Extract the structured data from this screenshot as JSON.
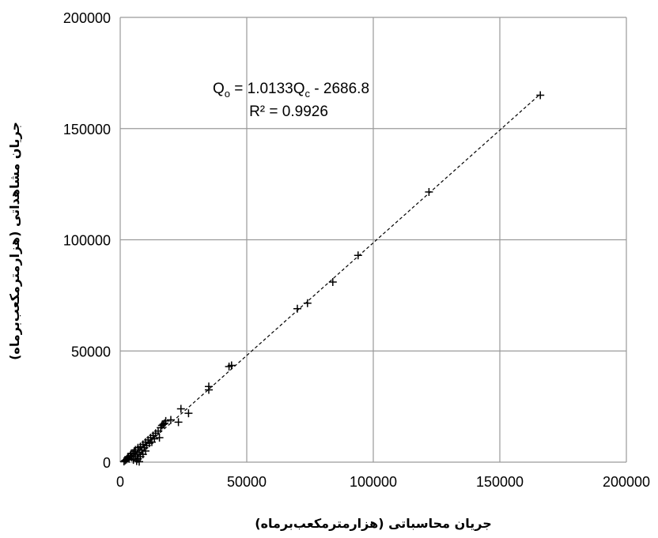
{
  "chart_data": {
    "type": "scatter",
    "xlabel": "جریان محاسباتی (هزارمترمکعب‌برماه)",
    "ylabel": "جریان مشاهداتی (هزارمترمکعب‌برماه)",
    "xlim": [
      0,
      200000
    ],
    "ylim": [
      0,
      200000
    ],
    "xticks": [
      "0",
      "50000",
      "100000",
      "150000",
      "200000"
    ],
    "yticks": [
      "0",
      "50000",
      "100000",
      "150000",
      "200000"
    ],
    "grid": true,
    "marker": "plus",
    "annotation": {
      "equation_prefix": "Q",
      "equation_sub_o": "o",
      "equation_middle": " = 1.0133Q",
      "equation_sub_c": "c",
      "equation_suffix": " - 2686.8",
      "r2": "R² = 0.9926"
    },
    "trendline": {
      "slope": 1.0133,
      "intercept": -2686.8,
      "x_range": [
        2650,
        166000
      ]
    },
    "series": [
      {
        "points": [
          [
            1500,
            300
          ],
          [
            2000,
            800
          ],
          [
            2500,
            1200
          ],
          [
            3000,
            2000
          ],
          [
            3200,
            2500
          ],
          [
            3500,
            1500
          ],
          [
            4000,
            3000
          ],
          [
            4300,
            3800
          ],
          [
            4500,
            2200
          ],
          [
            5000,
            4000
          ],
          [
            5200,
            1000
          ],
          [
            5500,
            4800
          ],
          [
            6000,
            2800
          ],
          [
            6000,
            5500
          ],
          [
            6500,
            500
          ],
          [
            6800,
            3500
          ],
          [
            7000,
            6500
          ],
          [
            7000,
            1500
          ],
          [
            7500,
            200
          ],
          [
            7500,
            4500
          ],
          [
            8000,
            7000
          ],
          [
            8000,
            2500
          ],
          [
            8500,
            5500
          ],
          [
            9000,
            8000
          ],
          [
            9000,
            3500
          ],
          [
            9500,
            6500
          ],
          [
            10000,
            9000
          ],
          [
            10000,
            5000
          ],
          [
            10500,
            7500
          ],
          [
            11000,
            10000
          ],
          [
            11500,
            8500
          ],
          [
            12000,
            11000
          ],
          [
            12500,
            9000
          ],
          [
            13000,
            12000
          ],
          [
            13500,
            10500
          ],
          [
            14000,
            13000
          ],
          [
            15000,
            14000
          ],
          [
            15500,
            11000
          ],
          [
            16000,
            15500
          ],
          [
            16500,
            16500
          ],
          [
            17000,
            17000
          ],
          [
            17500,
            17500
          ],
          [
            18000,
            18500
          ],
          [
            20000,
            19000
          ],
          [
            23000,
            18000
          ],
          [
            24000,
            24000
          ],
          [
            27000,
            22000
          ],
          [
            35000,
            32500
          ],
          [
            35000,
            34000
          ],
          [
            43000,
            43000
          ],
          [
            44000,
            43500
          ],
          [
            70000,
            69000
          ],
          [
            74000,
            71500
          ],
          [
            84000,
            81000
          ],
          [
            94000,
            93000
          ],
          [
            122000,
            121500
          ],
          [
            166000,
            165000
          ]
        ]
      }
    ]
  }
}
